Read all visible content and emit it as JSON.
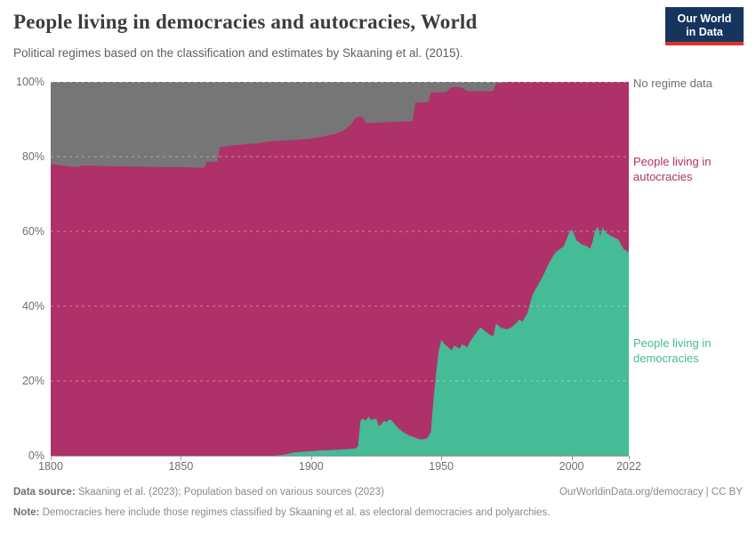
{
  "header": {
    "title": "People living in democracies and autocracies, World",
    "subtitle": "Political regimes based on the classification and estimates by Skaaning et al. (2015).",
    "logo": {
      "line1": "Our World",
      "line2": "in Data",
      "bg_color": "#16355e",
      "accent_color": "#dc3428"
    }
  },
  "chart_data": {
    "type": "area",
    "stacked": true,
    "unit": "%",
    "title": "People living in democracies and autocracies, World",
    "xlim": [
      1800,
      2022
    ],
    "ylim": [
      0,
      100
    ],
    "grid": true,
    "legend_position": "right",
    "xticks": [
      1800,
      1850,
      1900,
      1950,
      2000,
      2022
    ],
    "yticks": [
      0,
      20,
      40,
      60,
      80,
      100
    ],
    "ytick_suffix": "%",
    "x": [
      1800,
      1805,
      1810,
      1812,
      1815,
      1820,
      1825,
      1830,
      1835,
      1840,
      1845,
      1850,
      1855,
      1859,
      1860,
      1864,
      1865,
      1870,
      1875,
      1880,
      1883,
      1886,
      1890,
      1893,
      1896,
      1900,
      1904,
      1908,
      1911,
      1913,
      1915,
      1917,
      1918,
      1919,
      1920,
      1921,
      1922,
      1923,
      1925,
      1926,
      1927,
      1928,
      1929,
      1930,
      1931,
      1932,
      1934,
      1936,
      1938,
      1939,
      1940,
      1942,
      1944,
      1945,
      1946,
      1947,
      1948,
      1949,
      1950,
      1951,
      1952,
      1954,
      1955,
      1957,
      1958,
      1960,
      1961,
      1963,
      1965,
      1967,
      1969,
      1970,
      1971,
      1973,
      1975,
      1977,
      1979,
      1980,
      1981,
      1983,
      1985,
      1987,
      1989,
      1991,
      1993,
      1994,
      1996,
      1997,
      1999,
      2000,
      2001,
      2002,
      2004,
      2006,
      2007,
      2008,
      2009,
      2010,
      2011,
      2012,
      2013,
      2015,
      2017,
      2018,
      2019,
      2020,
      2021,
      2022
    ],
    "series": [
      {
        "name": "People living in democracies",
        "color": "#45bb96",
        "values": [
          0,
          0,
          0,
          0,
          0,
          0,
          0,
          0,
          0,
          0,
          0,
          0,
          0,
          0,
          0,
          0,
          0,
          0,
          0,
          0,
          0,
          0,
          0.3,
          0.8,
          1.0,
          1.2,
          1.4,
          1.5,
          1.6,
          1.7,
          1.8,
          1.9,
          2.5,
          9.5,
          9.9,
          9.3,
          10.4,
          9.6,
          9.9,
          7.9,
          8.4,
          9.4,
          9.0,
          9.7,
          9.4,
          8.5,
          7.0,
          6.0,
          5.3,
          5.1,
          4.8,
          4.3,
          4.5,
          5.0,
          6.5,
          15.0,
          22.0,
          28.0,
          31.0,
          30.0,
          29.4,
          28.2,
          29.5,
          28.6,
          29.8,
          29.0,
          30.5,
          32.5,
          34.3,
          33.2,
          32.2,
          32.0,
          35.3,
          34.2,
          33.8,
          34.3,
          35.6,
          36.5,
          35.8,
          38.0,
          43.0,
          45.5,
          48.0,
          51.0,
          53.5,
          54.5,
          55.5,
          56.0,
          59.5,
          60.6,
          59.2,
          57.5,
          56.5,
          56.0,
          55.3,
          57.0,
          60.0,
          61.3,
          58.8,
          61.0,
          59.8,
          58.8,
          58.2,
          57.8,
          56.5,
          55.3,
          54.8,
          54.4
        ]
      },
      {
        "name": "People living in autocracies",
        "color": "#ae3269",
        "values": [
          78.0,
          77.6,
          77.2,
          77.6,
          77.6,
          77.5,
          77.4,
          77.4,
          77.3,
          77.2,
          77.2,
          77.2,
          77.1,
          77.0,
          78.6,
          78.6,
          82.6,
          83.0,
          83.3,
          83.6,
          84.0,
          84.2,
          84.0,
          83.6,
          83.6,
          83.6,
          83.9,
          84.4,
          84.9,
          85.6,
          86.5,
          88.4,
          88.2,
          81.2,
          80.5,
          79.7,
          78.6,
          79.4,
          79.2,
          81.2,
          80.8,
          79.8,
          80.2,
          79.6,
          79.9,
          80.8,
          82.3,
          83.4,
          84.1,
          84.4,
          89.7,
          90.2,
          90.1,
          89.6,
          90.7,
          82.2,
          75.2,
          69.2,
          66.2,
          67.2,
          67.9,
          70.4,
          69.1,
          70.0,
          68.6,
          68.5,
          67.0,
          65.0,
          63.2,
          64.3,
          65.3,
          65.6,
          64.3,
          65.5,
          66.2,
          65.7,
          64.4,
          63.5,
          64.2,
          62.0,
          57.0,
          54.5,
          52.0,
          49.0,
          46.5,
          45.5,
          44.5,
          44.0,
          40.5,
          39.4,
          40.8,
          42.5,
          43.5,
          44.0,
          44.7,
          43.0,
          40.0,
          38.7,
          41.2,
          39.0,
          40.2,
          41.2,
          41.8,
          42.2,
          43.5,
          44.7,
          45.2,
          45.6
        ]
      },
      {
        "name": "No regime data",
        "color": "#767676",
        "values": [
          22.0,
          22.4,
          22.8,
          22.4,
          22.4,
          22.5,
          22.6,
          22.6,
          22.7,
          22.8,
          22.8,
          22.8,
          22.9,
          23.0,
          21.4,
          21.4,
          17.4,
          17.0,
          16.7,
          16.4,
          16.0,
          15.8,
          15.7,
          15.6,
          15.4,
          15.2,
          14.7,
          14.1,
          13.5,
          12.7,
          11.7,
          9.7,
          9.3,
          9.3,
          9.6,
          11.0,
          11.0,
          11.0,
          10.9,
          10.9,
          10.8,
          10.8,
          10.8,
          10.7,
          10.7,
          10.7,
          10.7,
          10.6,
          10.6,
          10.5,
          5.5,
          5.5,
          5.4,
          5.4,
          2.8,
          2.8,
          2.8,
          2.8,
          2.8,
          2.8,
          2.7,
          1.4,
          1.4,
          1.4,
          1.6,
          2.5,
          2.5,
          2.5,
          2.5,
          2.5,
          2.5,
          2.4,
          0.4,
          0.3,
          0,
          0,
          0,
          0,
          0,
          0,
          0,
          0,
          0,
          0,
          0,
          0,
          0,
          0,
          0,
          0,
          0,
          0,
          0,
          0,
          0,
          0,
          0,
          0,
          0,
          0,
          0,
          0,
          0,
          0,
          0,
          0,
          0,
          0
        ]
      }
    ]
  },
  "footer": {
    "data_source_label": "Data source:",
    "data_source_text": " Skaaning et al. (2023); Population based on various sources (2023)",
    "link_text": "OurWorldinData.org/democracy | CC BY",
    "note_label": "Note:",
    "note_text": " Democracies here include those regimes classified by Skaaning et al. as electoral democracies and polyarchies."
  }
}
